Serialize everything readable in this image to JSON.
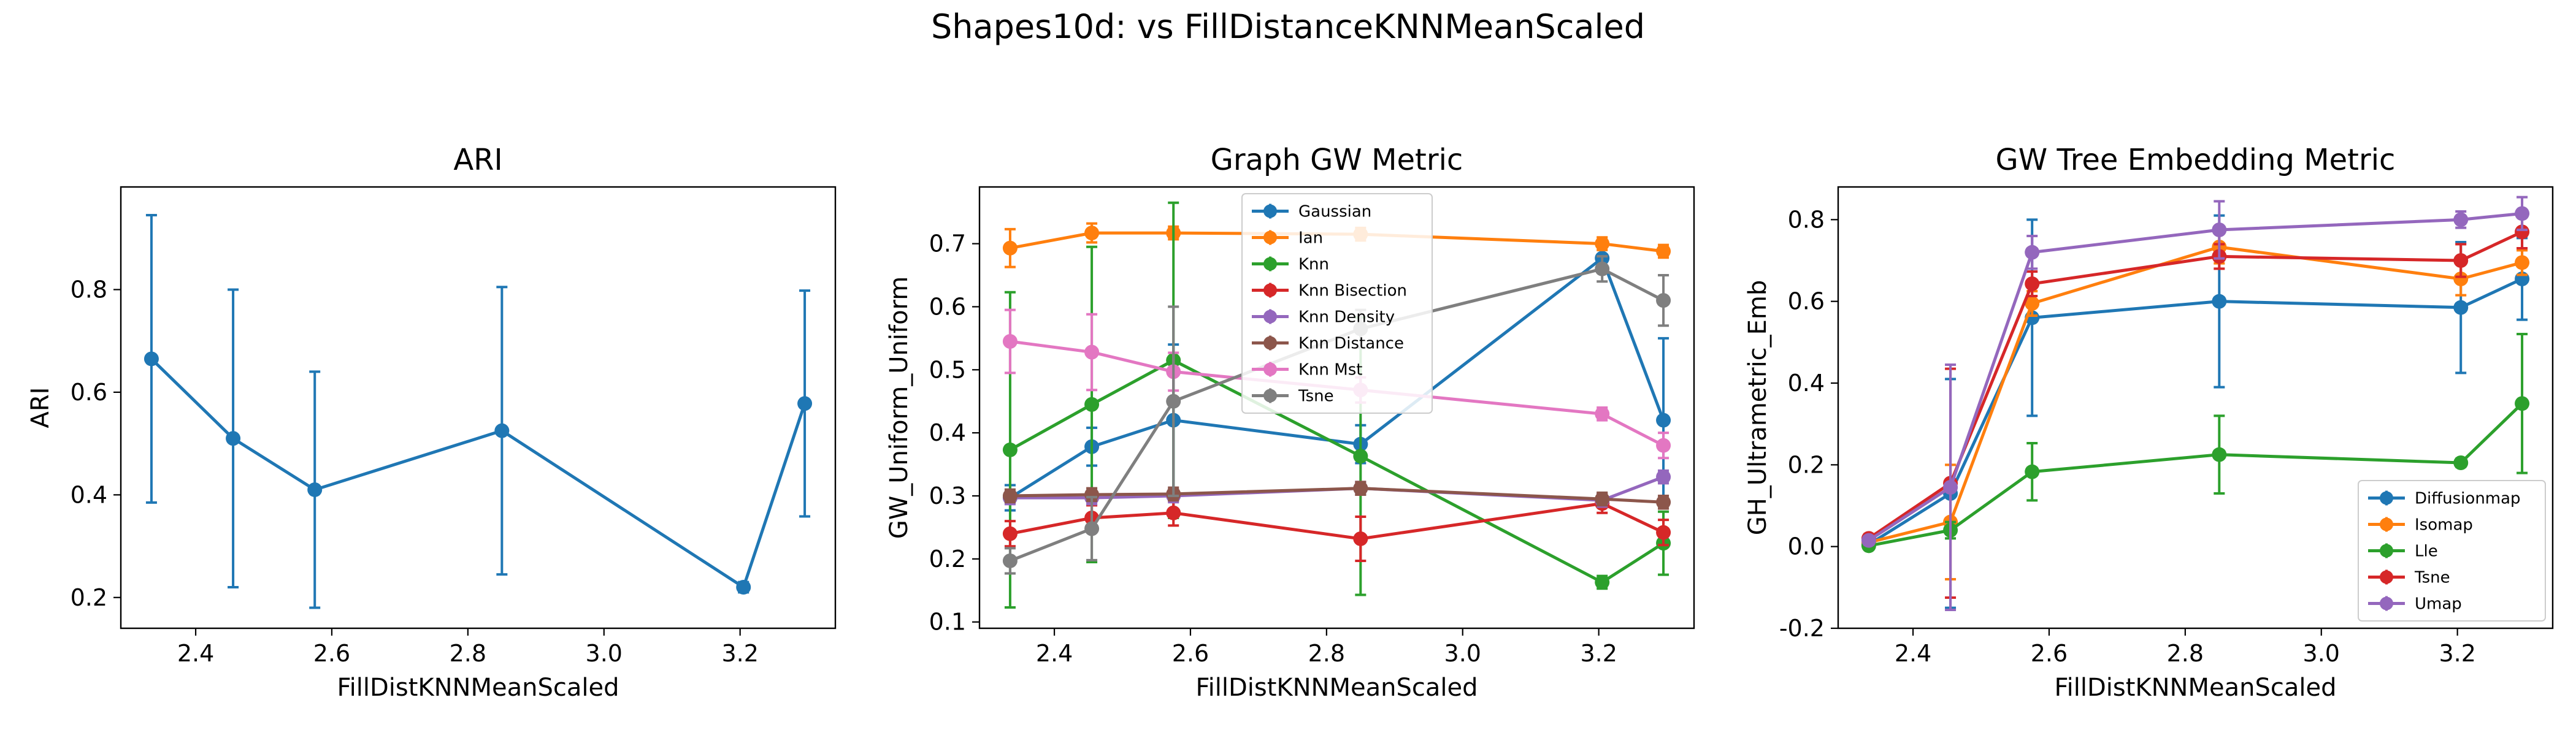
{
  "figure": {
    "suptitle": "Shapes10d: vs FillDistanceKNNMeanScaled"
  },
  "chart_data": [
    {
      "type": "line",
      "title": "ARI",
      "xlabel": "FillDistKNNMeanScaled",
      "ylabel": "ARI",
      "xlim": [
        2.29,
        3.34
      ],
      "ylim": [
        0.14,
        1.0
      ],
      "xticks": [
        2.4,
        2.6,
        2.8,
        3.0,
        3.2
      ],
      "yticks": [
        0.2,
        0.4,
        0.6,
        0.8
      ],
      "x": [
        2.335,
        2.455,
        2.575,
        2.85,
        3.205,
        3.295
      ],
      "series": [
        {
          "color": "#1f77b4",
          "values": [
            0.665,
            0.51,
            0.41,
            0.525,
            0.22,
            0.578
          ],
          "err": [
            0.28,
            0.29,
            0.23,
            0.28,
            0.01,
            0.22
          ]
        }
      ],
      "legend": null
    },
    {
      "type": "line",
      "title": "Graph GW Metric",
      "xlabel": "FillDistKNNMeanScaled",
      "ylabel": "GW_Uniform_Uniform",
      "xlim": [
        2.29,
        3.34
      ],
      "ylim": [
        0.09,
        0.79
      ],
      "xticks": [
        2.4,
        2.6,
        2.8,
        3.0,
        3.2
      ],
      "yticks": [
        0.1,
        0.2,
        0.3,
        0.4,
        0.5,
        0.6,
        0.7
      ],
      "x": [
        2.335,
        2.455,
        2.575,
        2.85,
        3.205,
        3.295
      ],
      "legend": "upper-center",
      "series": [
        {
          "name": "Gaussian",
          "color": "#1f77b4",
          "values": [
            0.297,
            0.378,
            0.42,
            0.382,
            0.677,
            0.42
          ],
          "err": [
            0.02,
            0.03,
            0.12,
            0.03,
            0.02,
            0.13
          ]
        },
        {
          "name": "Ian",
          "color": "#ff7f0e",
          "values": [
            0.693,
            0.717,
            0.717,
            0.715,
            0.7,
            0.688
          ],
          "err": [
            0.03,
            0.015,
            0.01,
            0.01,
            0.01,
            0.01
          ]
        },
        {
          "name": "Knn",
          "color": "#2ca02c",
          "values": [
            0.373,
            0.445,
            0.515,
            0.363,
            0.163,
            0.225
          ],
          "err": [
            0.25,
            0.25,
            0.25,
            0.22,
            0.01,
            0.05
          ]
        },
        {
          "name": "Knn Bisection",
          "color": "#d62728",
          "values": [
            0.24,
            0.265,
            0.273,
            0.232,
            0.288,
            0.242
          ],
          "err": [
            0.02,
            0.02,
            0.02,
            0.035,
            0.015,
            0.02
          ]
        },
        {
          "name": "Knn Density",
          "color": "#9467bd",
          "values": [
            0.297,
            0.297,
            0.3,
            0.312,
            0.293,
            0.33
          ],
          "err": [
            0.01,
            0.01,
            0.01,
            0.01,
            0.01,
            0.01
          ]
        },
        {
          "name": "Knn Distance",
          "color": "#8c564b",
          "values": [
            0.3,
            0.302,
            0.303,
            0.312,
            0.295,
            0.29
          ],
          "err": [
            0.01,
            0.01,
            0.01,
            0.01,
            0.01,
            0.01
          ]
        },
        {
          "name": "Knn Mst",
          "color": "#e377c2",
          "values": [
            0.545,
            0.528,
            0.497,
            0.468,
            0.43,
            0.38
          ],
          "err": [
            0.05,
            0.06,
            0.03,
            0.02,
            0.01,
            0.02
          ]
        },
        {
          "name": "Tsne",
          "color": "#7f7f7f",
          "values": [
            0.197,
            0.248,
            0.45,
            0.565,
            0.66,
            0.61
          ],
          "err": [
            0.02,
            0.05,
            0.15,
            0.03,
            0.02,
            0.04
          ]
        }
      ]
    },
    {
      "type": "line",
      "title": "GW Tree Embedding Metric",
      "xlabel": "FillDistKNNMeanScaled",
      "ylabel": "GH_Ultrametric_Emb",
      "xlim": [
        2.29,
        3.34
      ],
      "ylim": [
        -0.2,
        0.88
      ],
      "xticks": [
        2.4,
        2.6,
        2.8,
        3.0,
        3.2
      ],
      "yticks": [
        -0.2,
        0.0,
        0.2,
        0.4,
        0.6,
        0.8
      ],
      "x": [
        2.335,
        2.455,
        2.575,
        2.85,
        3.205,
        3.295
      ],
      "legend": "lower-right",
      "series": [
        {
          "name": "Diffusionmap",
          "color": "#1f77b4",
          "values": [
            0.005,
            0.13,
            0.56,
            0.6,
            0.585,
            0.655
          ],
          "err": [
            0.01,
            0.28,
            0.24,
            0.21,
            0.16,
            0.1
          ]
        },
        {
          "name": "Isomap",
          "color": "#ff7f0e",
          "values": [
            0.01,
            0.06,
            0.595,
            0.733,
            0.655,
            0.695
          ],
          "err": [
            0.01,
            0.14,
            0.03,
            0.04,
            0.04,
            0.03
          ]
        },
        {
          "name": "Lle",
          "color": "#2ca02c",
          "values": [
            0.002,
            0.04,
            0.183,
            0.225,
            0.205,
            0.35
          ],
          "err": [
            0.005,
            0.02,
            0.07,
            0.095,
            0.01,
            0.17
          ]
        },
        {
          "name": "Tsne",
          "color": "#d62728",
          "values": [
            0.02,
            0.155,
            0.643,
            0.71,
            0.7,
            0.77
          ],
          "err": [
            0.01,
            0.28,
            0.03,
            0.03,
            0.04,
            0.04
          ]
        },
        {
          "name": "Umap",
          "color": "#9467bd",
          "values": [
            0.015,
            0.145,
            0.72,
            0.775,
            0.8,
            0.815
          ],
          "err": [
            0.01,
            0.3,
            0.04,
            0.07,
            0.02,
            0.04
          ]
        }
      ]
    }
  ]
}
